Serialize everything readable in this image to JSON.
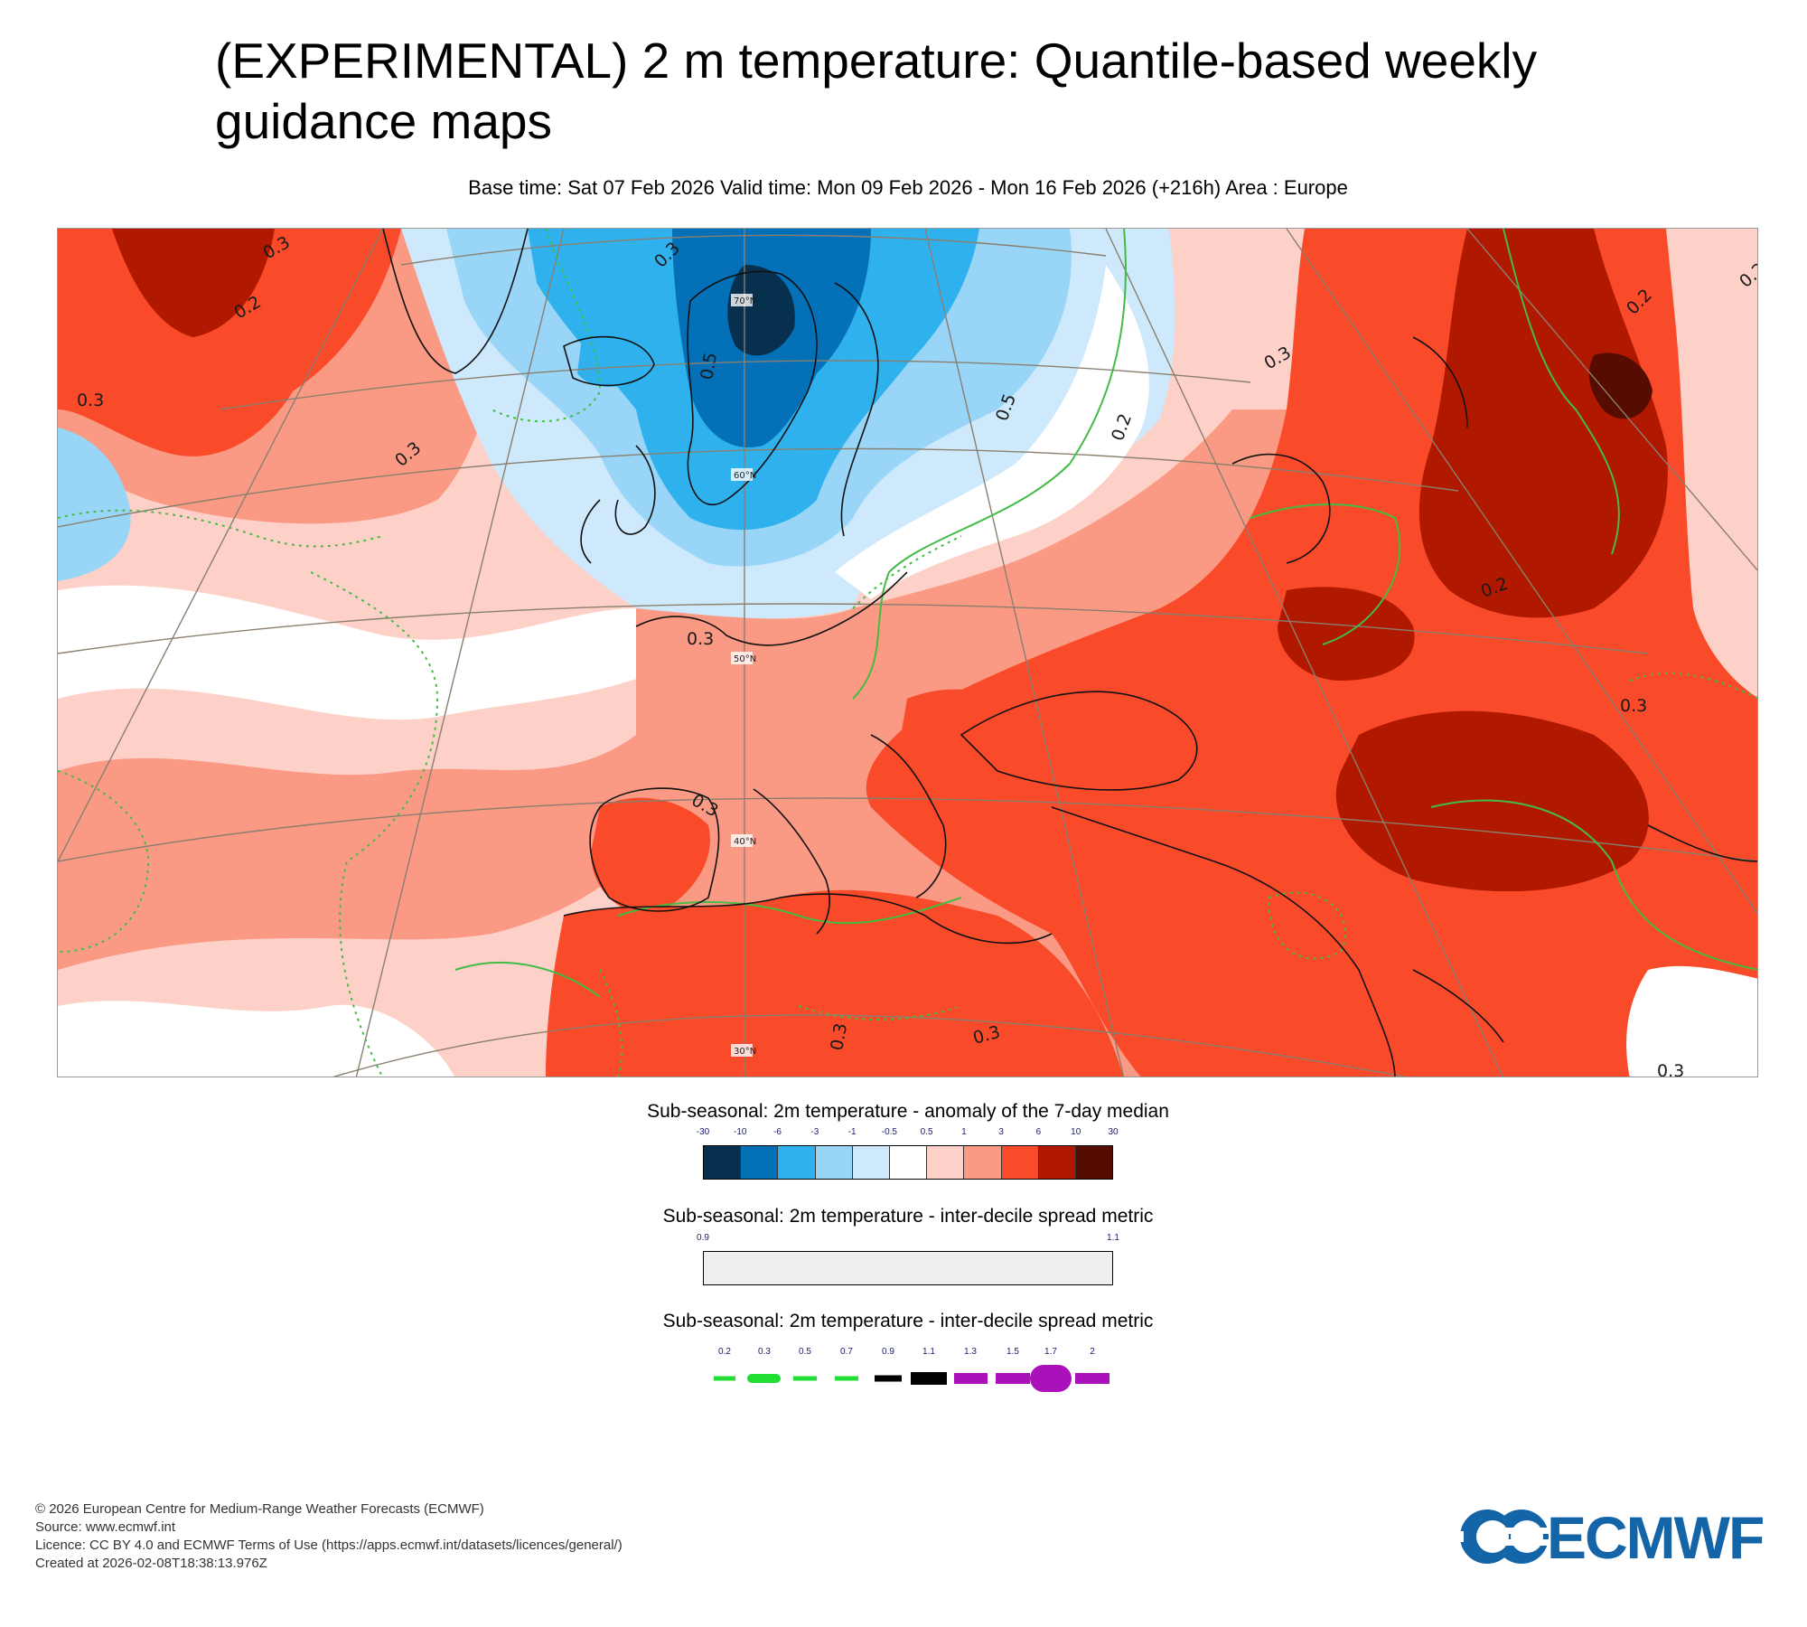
{
  "header": {
    "title": "(EXPERIMENTAL) 2 m temperature: Quantile-based weekly guidance maps",
    "subtitle": "Base time: Sat 07 Feb 2026 Valid time: Mon 09 Feb 2026 - Mon 16 Feb 2026 (+216h) Area : Europe"
  },
  "map": {
    "latitude_labels": [
      "70°N",
      "60°N",
      "50°N",
      "40°N",
      "30°N"
    ],
    "contour_labels": [
      "0.3",
      "0.2",
      "0.3",
      "0.5",
      "0.3",
      "0.3",
      "0.5",
      "0.2",
      "0.3",
      "0.2",
      "0.3",
      "0.3",
      "0.3",
      "0.3",
      "0.3",
      "0.3",
      "0.2",
      "0.2"
    ]
  },
  "legend_anomaly": {
    "title": "Sub-seasonal: 2m temperature - anomaly of the 7-day median",
    "ticks": [
      "-30",
      "-10",
      "-6",
      "-3",
      "-1",
      "-0.5",
      "0.5",
      "1",
      "3",
      "6",
      "10",
      "30"
    ],
    "colors": [
      "#06304d",
      "#0470b8",
      "#2fb1ee",
      "#98d5f6",
      "#cde9fb",
      "#ffffff",
      "#fdd0c8",
      "#fb9a84",
      "#f94a2a",
      "#b01800",
      "#560c00"
    ]
  },
  "legend_spread_fill": {
    "title": "Sub-seasonal: 2m temperature - inter-decile spread metric",
    "ticks": [
      "0.9",
      "1.1"
    ],
    "color": "#eeeeee"
  },
  "legend_spread_lines": {
    "title": "Sub-seasonal: 2m temperature - inter-decile spread metric",
    "ticks": [
      "0.2",
      "0.3",
      "0.5",
      "0.7",
      "0.9",
      "1.1",
      "1.3",
      "1.5",
      "1.7",
      "2"
    ],
    "colors": [
      "#22dd33",
      "#22dd33",
      "#22dd33",
      "#22dd33",
      "#000000",
      "#000000",
      "#aa11bb",
      "#aa11bb",
      "#aa11bb",
      "#aa11bb"
    ]
  },
  "footer": {
    "line1": "© 2026 European Centre for Medium-Range Weather Forecasts (ECMWF)",
    "line2": "Source: www.ecmwf.int",
    "line3": "Licence: CC BY 4.0 and ECMWF Terms of Use (https://apps.ecmwf.int/datasets/licences/general/)",
    "line4": "Created at 2026-02-08T18:38:13.976Z"
  },
  "logo": {
    "text": "ECMWF",
    "color": "#1464a8"
  }
}
